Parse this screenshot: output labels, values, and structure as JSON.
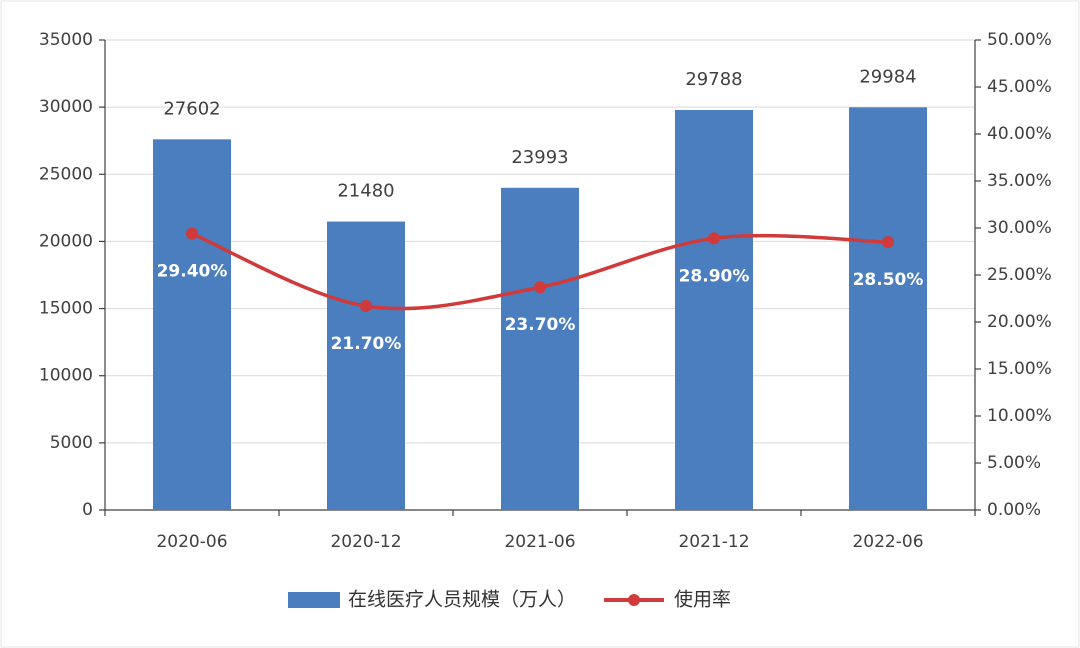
{
  "chart_data": {
    "type": "bar-line",
    "categories": [
      "2020-06",
      "2020-12",
      "2021-06",
      "2021-12",
      "2022-06"
    ],
    "series": [
      {
        "name": "在线医疗人员规模（万人）",
        "type": "bar",
        "color": "#4a7ebf",
        "values": [
          27602,
          21480,
          23993,
          29788,
          29984
        ]
      },
      {
        "name": "使用率",
        "type": "line",
        "axis": "y2",
        "color": "#d03a3a",
        "values": [
          29.4,
          21.7,
          23.7,
          28.9,
          28.5
        ],
        "value_labels": [
          "29.40%",
          "21.70%",
          "23.70%",
          "28.90%",
          "28.50%"
        ]
      }
    ],
    "ylim": [
      0,
      35000
    ],
    "yticks": [
      0,
      5000,
      10000,
      15000,
      20000,
      25000,
      30000,
      35000
    ],
    "y2lim": [
      0,
      50
    ],
    "y2ticks": [
      {
        "value": 0,
        "label": "0.00%"
      },
      {
        "value": 5,
        "label": "5.00%"
      },
      {
        "value": 10,
        "label": "10.00%"
      },
      {
        "value": 15,
        "label": "15.00%"
      },
      {
        "value": 20,
        "label": "20.00%"
      },
      {
        "value": 25,
        "label": "25.00%"
      },
      {
        "value": 30,
        "label": "30.00%"
      },
      {
        "value": 35,
        "label": "35.00%"
      },
      {
        "value": 40,
        "label": "40.00%"
      },
      {
        "value": 45,
        "label": "45.00%"
      },
      {
        "value": 50,
        "label": "50.00%"
      }
    ],
    "grid": true,
    "legend": "bottom"
  }
}
